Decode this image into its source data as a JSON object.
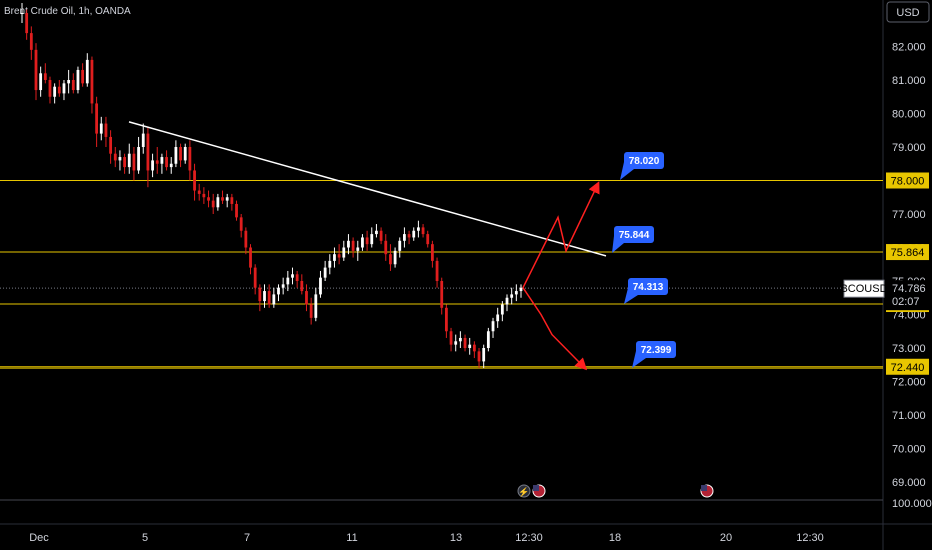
{
  "header": {
    "title": "Brent Crude Oil, 1h, OANDA"
  },
  "currency_button": "USD",
  "chart_data": {
    "type": "candlestick",
    "title": "Brent Crude Oil, 1h, OANDA",
    "xlabel": "",
    "ylabel": "",
    "ylim": [
      68.6,
      82.8
    ],
    "y_ticks": [
      "82.000",
      "81.000",
      "80.000",
      "79.000",
      "78.000",
      "77.000",
      "76.000",
      "75.000",
      "74.000",
      "73.000",
      "72.000",
      "71.000",
      "70.000",
      "69.000"
    ],
    "x_ticks": [
      "Dec",
      "5",
      "7",
      "11",
      "13",
      "12:30",
      "18",
      "20",
      "12:30"
    ],
    "grid": false,
    "volume_axis_label": "100.000",
    "symbol_tag": {
      "symbol": "BCOUSD",
      "price": "74.786",
      "countdown": "02:07"
    },
    "horizontal_levels": [
      {
        "value": 78.0,
        "label": "78.000"
      },
      {
        "value": 75.864,
        "label": "75.864"
      },
      {
        "value": 74.313,
        "label": "74.313"
      },
      {
        "value": 72.44,
        "label": "72.440"
      }
    ],
    "callouts": [
      {
        "label": "78.020"
      },
      {
        "label": "75.844"
      },
      {
        "label": "74.313"
      },
      {
        "label": "72.399"
      }
    ],
    "trendline": {
      "start": {
        "x_tick": "5",
        "price": 79.75
      },
      "end": {
        "x_tick": "18",
        "price": 75.75
      }
    },
    "current_price": 74.786,
    "candles": [
      [
        83.0,
        83.3,
        82.7,
        83.0
      ],
      [
        83.0,
        83.1,
        82.2,
        82.4
      ],
      [
        82.4,
        82.6,
        81.6,
        81.9
      ],
      [
        81.9,
        82.1,
        80.4,
        80.7
      ],
      [
        80.7,
        81.4,
        80.5,
        81.2
      ],
      [
        81.2,
        81.5,
        80.9,
        81.0
      ],
      [
        81.0,
        81.1,
        80.3,
        80.5
      ],
      [
        80.5,
        80.9,
        80.3,
        80.8
      ],
      [
        80.8,
        81.0,
        80.5,
        80.6
      ],
      [
        80.6,
        81.0,
        80.4,
        80.9
      ],
      [
        80.9,
        81.3,
        80.6,
        81.0
      ],
      [
        81.0,
        81.2,
        80.6,
        80.7
      ],
      [
        80.7,
        81.4,
        80.6,
        81.3
      ],
      [
        81.3,
        81.5,
        80.8,
        80.9
      ],
      [
        80.9,
        81.8,
        80.8,
        81.6
      ],
      [
        81.6,
        81.7,
        80.0,
        80.3
      ],
      [
        80.3,
        80.5,
        79.0,
        79.4
      ],
      [
        79.4,
        79.9,
        79.2,
        79.7
      ],
      [
        79.7,
        79.9,
        79.0,
        79.3
      ],
      [
        79.3,
        79.5,
        78.5,
        78.8
      ],
      [
        78.8,
        79.0,
        78.4,
        78.6
      ],
      [
        78.6,
        78.9,
        78.3,
        78.7
      ],
      [
        78.7,
        78.8,
        78.2,
        78.4
      ],
      [
        78.4,
        79.1,
        78.2,
        78.8
      ],
      [
        78.8,
        79.0,
        78.0,
        78.3
      ],
      [
        78.3,
        79.3,
        78.2,
        79.0
      ],
      [
        79.0,
        79.7,
        78.8,
        79.4
      ],
      [
        79.4,
        79.6,
        77.8,
        78.3
      ],
      [
        78.3,
        78.8,
        78.1,
        78.6
      ],
      [
        78.6,
        79.0,
        78.2,
        78.5
      ],
      [
        78.5,
        78.8,
        78.2,
        78.7
      ],
      [
        78.7,
        78.9,
        78.3,
        78.4
      ],
      [
        78.4,
        78.7,
        78.2,
        78.5
      ],
      [
        78.5,
        79.2,
        78.4,
        79.0
      ],
      [
        79.0,
        79.1,
        78.4,
        78.6
      ],
      [
        78.6,
        79.1,
        78.5,
        79.0
      ],
      [
        79.0,
        79.2,
        78.0,
        78.3
      ],
      [
        78.3,
        78.5,
        77.4,
        77.7
      ],
      [
        77.7,
        77.9,
        77.4,
        77.6
      ],
      [
        77.6,
        77.8,
        77.3,
        77.5
      ],
      [
        77.5,
        77.7,
        77.2,
        77.4
      ],
      [
        77.4,
        77.6,
        77.0,
        77.2
      ],
      [
        77.2,
        77.6,
        77.1,
        77.5
      ],
      [
        77.5,
        77.7,
        77.3,
        77.4
      ],
      [
        77.4,
        77.6,
        77.2,
        77.5
      ],
      [
        77.5,
        77.6,
        77.1,
        77.3
      ],
      [
        77.3,
        77.4,
        76.8,
        76.9
      ],
      [
        76.9,
        77.0,
        76.3,
        76.5
      ],
      [
        76.5,
        76.6,
        75.8,
        76.0
      ],
      [
        76.0,
        76.1,
        75.2,
        75.4
      ],
      [
        75.4,
        75.5,
        74.6,
        74.8
      ],
      [
        74.8,
        74.9,
        74.1,
        74.4
      ],
      [
        74.4,
        74.9,
        74.2,
        74.7
      ],
      [
        74.7,
        74.9,
        74.2,
        74.3
      ],
      [
        74.3,
        74.8,
        74.2,
        74.6
      ],
      [
        74.6,
        74.9,
        74.4,
        74.8
      ],
      [
        74.8,
        75.1,
        74.6,
        74.9
      ],
      [
        74.9,
        75.3,
        74.7,
        75.1
      ],
      [
        75.1,
        75.4,
        74.9,
        75.2
      ],
      [
        75.2,
        75.3,
        74.8,
        75.0
      ],
      [
        75.0,
        75.2,
        74.6,
        74.7
      ],
      [
        74.7,
        74.9,
        74.1,
        74.3
      ],
      [
        74.3,
        74.5,
        73.7,
        73.9
      ],
      [
        73.9,
        74.8,
        73.8,
        74.6
      ],
      [
        74.6,
        75.3,
        74.5,
        75.1
      ],
      [
        75.1,
        75.6,
        75.0,
        75.4
      ],
      [
        75.4,
        75.8,
        75.2,
        75.6
      ],
      [
        75.6,
        76.0,
        75.4,
        75.8
      ],
      [
        75.8,
        76.1,
        75.5,
        75.7
      ],
      [
        75.7,
        76.2,
        75.6,
        76.0
      ],
      [
        76.0,
        76.4,
        75.8,
        76.2
      ],
      [
        76.2,
        76.3,
        75.7,
        75.9
      ],
      [
        75.9,
        76.2,
        75.6,
        76.0
      ],
      [
        76.0,
        76.4,
        75.9,
        76.3
      ],
      [
        76.3,
        76.5,
        75.9,
        76.1
      ],
      [
        76.1,
        76.6,
        76.0,
        76.4
      ],
      [
        76.4,
        76.7,
        76.3,
        76.5
      ],
      [
        76.5,
        76.6,
        76.1,
        76.2
      ],
      [
        76.2,
        76.4,
        75.6,
        75.8
      ],
      [
        75.8,
        76.1,
        75.3,
        75.5
      ],
      [
        75.5,
        76.0,
        75.4,
        75.9
      ],
      [
        75.9,
        76.3,
        75.7,
        76.2
      ],
      [
        76.2,
        76.6,
        76.0,
        76.4
      ],
      [
        76.4,
        76.5,
        76.1,
        76.3
      ],
      [
        76.3,
        76.6,
        76.2,
        76.5
      ],
      [
        76.5,
        76.8,
        76.3,
        76.6
      ],
      [
        76.6,
        76.7,
        76.3,
        76.4
      ],
      [
        76.4,
        76.5,
        76.0,
        76.1
      ],
      [
        76.1,
        76.2,
        75.4,
        75.6
      ],
      [
        75.6,
        75.7,
        74.8,
        75.0
      ],
      [
        75.0,
        75.1,
        74.0,
        74.2
      ],
      [
        74.2,
        74.3,
        73.3,
        73.5
      ],
      [
        73.5,
        73.6,
        72.9,
        73.1
      ],
      [
        73.1,
        73.4,
        72.9,
        73.2
      ],
      [
        73.2,
        73.5,
        73.0,
        73.3
      ],
      [
        73.3,
        73.4,
        72.9,
        73.0
      ],
      [
        73.0,
        73.3,
        72.8,
        73.1
      ],
      [
        73.1,
        73.2,
        72.7,
        72.9
      ],
      [
        72.9,
        73.0,
        72.4,
        72.6
      ],
      [
        72.6,
        73.1,
        72.4,
        73.0
      ],
      [
        73.0,
        73.6,
        72.9,
        73.5
      ],
      [
        73.5,
        73.9,
        73.3,
        73.8
      ],
      [
        73.8,
        74.2,
        73.6,
        74.0
      ],
      [
        74.0,
        74.4,
        73.8,
        74.3
      ],
      [
        74.3,
        74.6,
        74.1,
        74.5
      ],
      [
        74.5,
        74.8,
        74.3,
        74.6
      ],
      [
        74.6,
        74.9,
        74.4,
        74.7
      ],
      [
        74.7,
        74.9,
        74.5,
        74.8
      ]
    ],
    "projection_up": [
      74.8,
      76.9,
      75.9,
      77.9
    ],
    "projection_down": [
      74.8,
      74.0,
      73.4,
      72.4
    ]
  }
}
